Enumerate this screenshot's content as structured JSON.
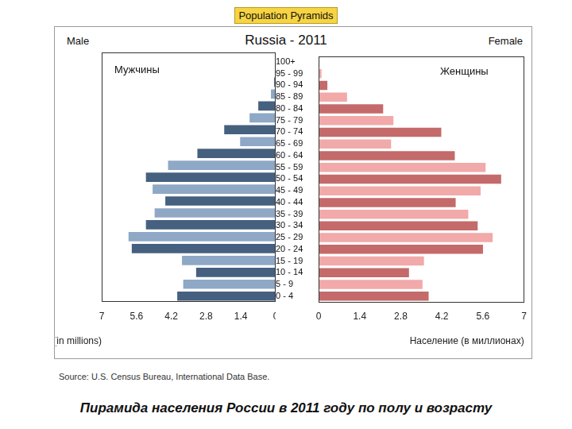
{
  "page": {
    "header": "Population Pyramids",
    "source": "Source: U.S. Census Bureau, International Data Base.",
    "caption": "Пирамида населения России в 2011 году по полу и возрасту"
  },
  "chart_data": {
    "type": "bar",
    "orientation": "horizontal",
    "title": "Russia - 2011",
    "categories": [
      "100+",
      "95 - 99",
      "90 - 94",
      "85 - 89",
      "80 - 84",
      "75 - 79",
      "70 - 74",
      "65 - 69",
      "60 - 64",
      "55 - 59",
      "50 - 54",
      "45 - 49",
      "40 - 44",
      "35 - 39",
      "30 - 34",
      "25 - 29",
      "20 - 24",
      "15 - 19",
      "10 - 14",
      "5 - 9",
      "0 - 4"
    ],
    "xlim": [
      0,
      7
    ],
    "xticks": [
      0,
      1.4,
      2.8,
      4.2,
      5.6,
      7
    ],
    "grid": false,
    "legend": "none",
    "series": [
      {
        "name": "Male",
        "annotation": "Мужчины",
        "xlabel": "Population (in millions)",
        "values": [
          0.01,
          0.02,
          0.06,
          0.19,
          0.7,
          1.05,
          2.07,
          1.43,
          3.15,
          4.33,
          5.22,
          4.95,
          4.44,
          4.87,
          5.22,
          5.92,
          5.79,
          3.77,
          3.2,
          3.72,
          3.96
        ],
        "colors": [
          "#46617f",
          "#8ea8c6",
          "#46617f",
          "#8ea8c6",
          "#46617f",
          "#8ea8c6",
          "#46617f",
          "#8ea8c6",
          "#46617f",
          "#8ea8c6",
          "#46617f",
          "#8ea8c6",
          "#46617f",
          "#8ea8c6",
          "#46617f",
          "#8ea8c6",
          "#46617f",
          "#8ea8c6",
          "#46617f",
          "#8ea8c6",
          "#46617f"
        ]
      },
      {
        "name": "Female",
        "annotation": "Женщины",
        "xlabel": "Население (в миллионах)",
        "values": [
          0.03,
          0.1,
          0.3,
          0.97,
          2.2,
          2.55,
          4.18,
          2.47,
          4.64,
          5.69,
          6.22,
          5.52,
          4.67,
          5.1,
          5.42,
          5.93,
          5.6,
          3.59,
          3.08,
          3.54,
          3.75
        ],
        "colors": [
          "#c46a6a",
          "#f2a9a9",
          "#c46a6a",
          "#f2a9a9",
          "#c46a6a",
          "#f2a9a9",
          "#c46a6a",
          "#f2a9a9",
          "#c46a6a",
          "#f2a9a9",
          "#c46a6a",
          "#f2a9a9",
          "#c46a6a",
          "#f2a9a9",
          "#c46a6a",
          "#f2a9a9",
          "#c46a6a",
          "#f2a9a9",
          "#c46a6a",
          "#f2a9a9",
          "#c46a6a"
        ]
      }
    ]
  }
}
